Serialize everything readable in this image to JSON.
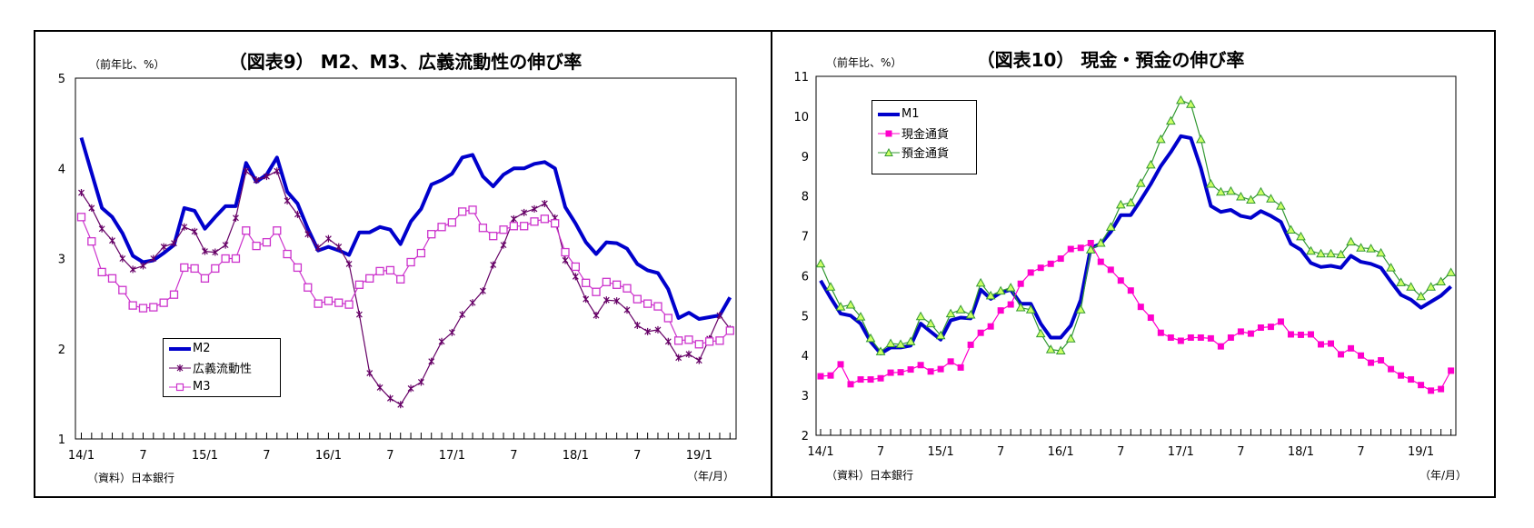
{
  "chart_data": [
    {
      "type": "line",
      "title": "（図表9） M2、M3、広義流動性の伸び率",
      "ylabel": "（前年比、%）",
      "xlabel": "（年/月）",
      "source": "（資料）日本銀行",
      "ylim": [
        1,
        5
      ],
      "yticks": [
        "1",
        "2",
        "3",
        "4",
        "5"
      ],
      "xtick_labels": [
        "14/1",
        "7",
        "15/1",
        "7",
        "16/1",
        "7",
        "17/1",
        "7",
        "18/1",
        "7",
        "19/1"
      ],
      "grid": false,
      "legend_position": "bottom-left",
      "categories": [
        "14/1",
        "14/2",
        "14/3",
        "14/4",
        "14/5",
        "14/6",
        "14/7",
        "14/8",
        "14/9",
        "14/10",
        "14/11",
        "14/12",
        "15/1",
        "15/2",
        "15/3",
        "15/4",
        "15/5",
        "15/6",
        "15/7",
        "15/8",
        "15/9",
        "15/10",
        "15/11",
        "15/12",
        "16/1",
        "16/2",
        "16/3",
        "16/4",
        "16/5",
        "16/6",
        "16/7",
        "16/8",
        "16/9",
        "16/10",
        "16/11",
        "16/12",
        "17/1",
        "17/2",
        "17/3",
        "17/4",
        "17/5",
        "17/6",
        "17/7",
        "17/8",
        "17/9",
        "17/10",
        "17/11",
        "17/12",
        "18/1",
        "18/2",
        "18/3",
        "18/4",
        "18/5",
        "18/6",
        "18/7",
        "18/8",
        "18/9",
        "18/10",
        "18/11",
        "18/12",
        "19/1",
        "19/2",
        "19/3",
        "19/4"
      ],
      "series": [
        {
          "name": "M2",
          "color": "#0000cc",
          "marker": "none",
          "values": [
            4.34,
            3.95,
            3.56,
            3.46,
            3.28,
            3.03,
            2.96,
            2.98,
            3.06,
            3.15,
            3.56,
            3.53,
            3.33,
            3.46,
            3.58,
            3.58,
            4.06,
            3.85,
            3.93,
            4.12,
            3.74,
            3.61,
            3.33,
            3.09,
            3.13,
            3.09,
            3.04,
            3.29,
            3.29,
            3.35,
            3.32,
            3.16,
            3.41,
            3.55,
            3.82,
            3.87,
            3.94,
            4.12,
            4.15,
            3.91,
            3.8,
            3.93,
            4.0,
            4.0,
            4.05,
            4.07,
            4.0,
            3.57,
            3.39,
            3.18,
            3.05,
            3.18,
            3.17,
            3.11,
            2.94,
            2.87,
            2.84,
            2.66,
            2.34,
            2.4,
            2.33,
            2.35,
            2.37,
            2.57
          ]
        },
        {
          "name": "広義流動性",
          "color": "#660066",
          "marker": "star",
          "values": [
            3.73,
            3.56,
            3.33,
            3.2,
            3.0,
            2.88,
            2.92,
            3.0,
            3.13,
            3.17,
            3.35,
            3.3,
            3.08,
            3.07,
            3.15,
            3.45,
            3.97,
            3.87,
            3.91,
            3.97,
            3.64,
            3.49,
            3.27,
            3.12,
            3.22,
            3.13,
            2.94,
            2.38,
            1.73,
            1.57,
            1.45,
            1.38,
            1.56,
            1.63,
            1.86,
            2.08,
            2.18,
            2.38,
            2.51,
            2.64,
            2.93,
            3.15,
            3.44,
            3.51,
            3.55,
            3.61,
            3.45,
            2.98,
            2.8,
            2.55,
            2.37,
            2.54,
            2.53,
            2.43,
            2.26,
            2.19,
            2.21,
            2.08,
            1.9,
            1.94,
            1.87,
            2.11,
            2.37,
            2.22
          ]
        },
        {
          "name": "M3",
          "color": "#cc33cc",
          "marker": "open-square",
          "values": [
            3.46,
            3.19,
            2.85,
            2.78,
            2.65,
            2.48,
            2.45,
            2.46,
            2.51,
            2.6,
            2.9,
            2.89,
            2.78,
            2.89,
            3.0,
            3.0,
            3.31,
            3.14,
            3.18,
            3.31,
            3.05,
            2.9,
            2.68,
            2.5,
            2.53,
            2.51,
            2.49,
            2.71,
            2.78,
            2.86,
            2.87,
            2.77,
            2.96,
            3.06,
            3.27,
            3.35,
            3.4,
            3.52,
            3.54,
            3.34,
            3.25,
            3.32,
            3.36,
            3.36,
            3.41,
            3.44,
            3.39,
            3.07,
            2.91,
            2.73,
            2.63,
            2.74,
            2.71,
            2.67,
            2.55,
            2.5,
            2.47,
            2.34,
            2.09,
            2.1,
            2.05,
            2.08,
            2.09,
            2.2
          ]
        }
      ]
    },
    {
      "type": "line",
      "title": "（図表10） 現金・預金の伸び率",
      "ylabel": "（前年比、%）",
      "xlabel": "（年/月）",
      "source": "（資料）日本銀行",
      "ylim": [
        2,
        11
      ],
      "yticks": [
        "2",
        "3",
        "4",
        "5",
        "6",
        "7",
        "8",
        "9",
        "10",
        "11"
      ],
      "xtick_labels": [
        "14/1",
        "7",
        "15/1",
        "7",
        "16/1",
        "7",
        "17/1",
        "7",
        "18/1",
        "7",
        "19/1"
      ],
      "grid": false,
      "legend_position": "top-left",
      "categories": [
        "14/1",
        "14/2",
        "14/3",
        "14/4",
        "14/5",
        "14/6",
        "14/7",
        "14/8",
        "14/9",
        "14/10",
        "14/11",
        "14/12",
        "15/1",
        "15/2",
        "15/3",
        "15/4",
        "15/5",
        "15/6",
        "15/7",
        "15/8",
        "15/9",
        "15/10",
        "15/11",
        "15/12",
        "16/1",
        "16/2",
        "16/3",
        "16/4",
        "16/5",
        "16/6",
        "16/7",
        "16/8",
        "16/9",
        "16/10",
        "16/11",
        "16/12",
        "17/1",
        "17/2",
        "17/3",
        "17/4",
        "17/5",
        "17/6",
        "17/7",
        "17/8",
        "17/9",
        "17/10",
        "17/11",
        "17/12",
        "18/1",
        "18/2",
        "18/3",
        "18/4",
        "18/5",
        "18/6",
        "18/7",
        "18/8",
        "18/9",
        "18/10",
        "18/11",
        "18/12",
        "19/1",
        "19/2",
        "19/3",
        "19/4"
      ],
      "series": [
        {
          "name": "M1",
          "color": "#0000cc",
          "marker": "none",
          "values": [
            5.88,
            5.45,
            5.05,
            5.0,
            4.8,
            4.35,
            4.05,
            4.2,
            4.2,
            4.25,
            4.8,
            4.6,
            4.4,
            4.88,
            4.95,
            4.93,
            5.65,
            5.42,
            5.58,
            5.65,
            5.3,
            5.3,
            4.8,
            4.45,
            4.45,
            4.75,
            5.4,
            6.7,
            6.8,
            7.1,
            7.52,
            7.52,
            7.9,
            8.3,
            8.75,
            9.1,
            9.5,
            9.45,
            8.7,
            7.75,
            7.6,
            7.65,
            7.5,
            7.45,
            7.62,
            7.5,
            7.35,
            6.8,
            6.65,
            6.32,
            6.22,
            6.25,
            6.2,
            6.5,
            6.35,
            6.3,
            6.2,
            5.85,
            5.52,
            5.4,
            5.2,
            5.35,
            5.5,
            5.73
          ]
        },
        {
          "name": "現金通貨",
          "color": "#ff00cc",
          "marker": "filled-square",
          "values": [
            3.48,
            3.5,
            3.78,
            3.28,
            3.4,
            3.4,
            3.43,
            3.57,
            3.58,
            3.65,
            3.76,
            3.6,
            3.66,
            3.85,
            3.7,
            4.27,
            4.57,
            4.73,
            5.13,
            5.28,
            5.8,
            6.08,
            6.2,
            6.3,
            6.43,
            6.67,
            6.7,
            6.82,
            6.35,
            6.15,
            5.88,
            5.63,
            5.22,
            4.95,
            4.57,
            4.45,
            4.37,
            4.45,
            4.45,
            4.43,
            4.23,
            4.45,
            4.6,
            4.55,
            4.7,
            4.72,
            4.85,
            4.53,
            4.52,
            4.53,
            4.28,
            4.3,
            4.03,
            4.18,
            4.0,
            3.82,
            3.88,
            3.66,
            3.5,
            3.4,
            3.26,
            3.12,
            3.16,
            3.62
          ]
        },
        {
          "name": "預金通貨",
          "color": "#339933",
          "marker_fill": "#ccff66",
          "marker": "triangle",
          "values": [
            6.3,
            5.72,
            5.22,
            5.27,
            4.97,
            4.43,
            4.1,
            4.3,
            4.28,
            4.35,
            4.98,
            4.8,
            4.5,
            5.05,
            5.15,
            5.02,
            5.82,
            5.5,
            5.62,
            5.7,
            5.2,
            5.15,
            4.55,
            4.15,
            4.12,
            4.42,
            5.15,
            6.65,
            6.82,
            7.22,
            7.78,
            7.83,
            8.32,
            8.78,
            9.42,
            9.88,
            10.4,
            10.3,
            9.42,
            8.3,
            8.1,
            8.12,
            7.98,
            7.9,
            8.1,
            7.93,
            7.75,
            7.15,
            6.98,
            6.62,
            6.55,
            6.55,
            6.53,
            6.85,
            6.7,
            6.68,
            6.57,
            6.2,
            5.83,
            5.72,
            5.48,
            5.72,
            5.85,
            6.08
          ]
        }
      ]
    }
  ]
}
